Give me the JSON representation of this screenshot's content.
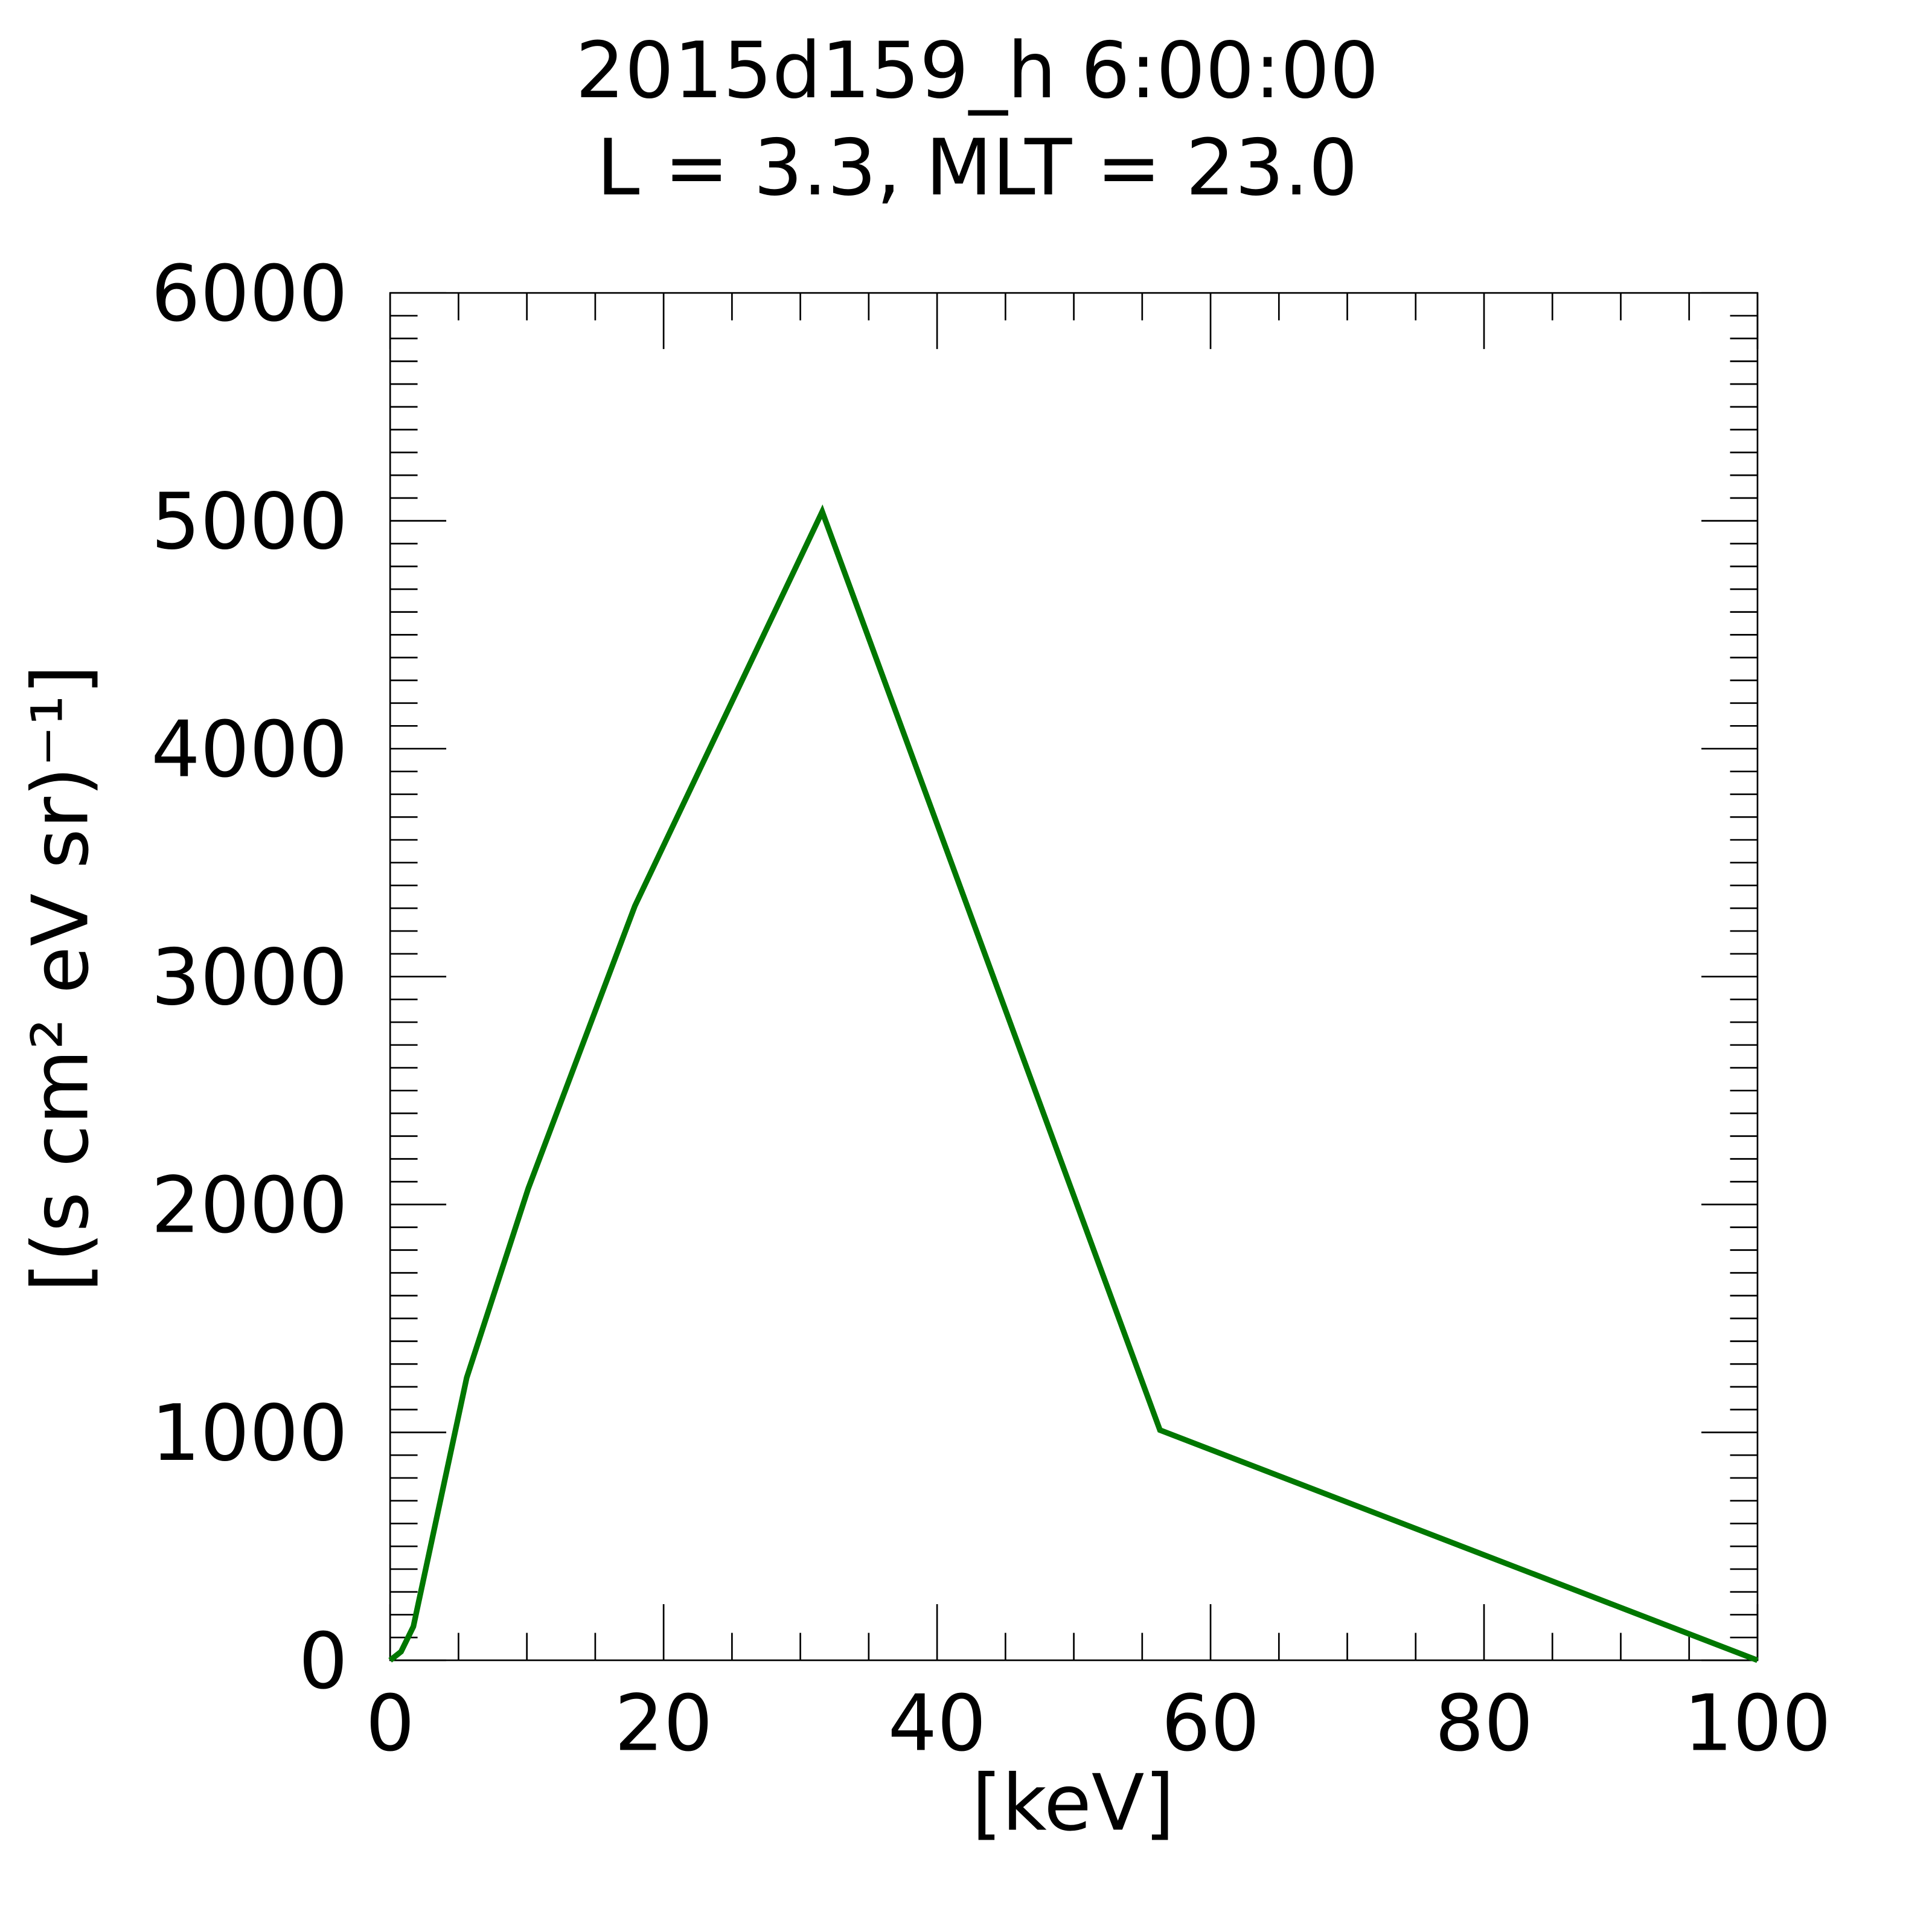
{
  "chart_data": {
    "type": "line",
    "title": "2015d159_h   6:00:00",
    "subtitle": "L = 3.3, MLT = 23.0",
    "x_label": "[keV]",
    "y_label": "[(s cm² eV sr)⁻¹]",
    "x": [
      0,
      0.8,
      1.7,
      5.6,
      10.1,
      17.9,
      31.6,
      56.3,
      100
    ],
    "series": [
      {
        "color": "#007700",
        "values": [
          0,
          38,
          148,
          1240,
          2070,
          3310,
          5040,
          1010,
          0
        ]
      }
    ],
    "xlim": [
      0,
      100
    ],
    "xticks": [
      0,
      20,
      40,
      60,
      80,
      100
    ],
    "ylim": [
      0,
      6000
    ],
    "yticks": [
      0,
      1000,
      2000,
      3000,
      4000,
      5000,
      6000
    ],
    "grid": false
  }
}
